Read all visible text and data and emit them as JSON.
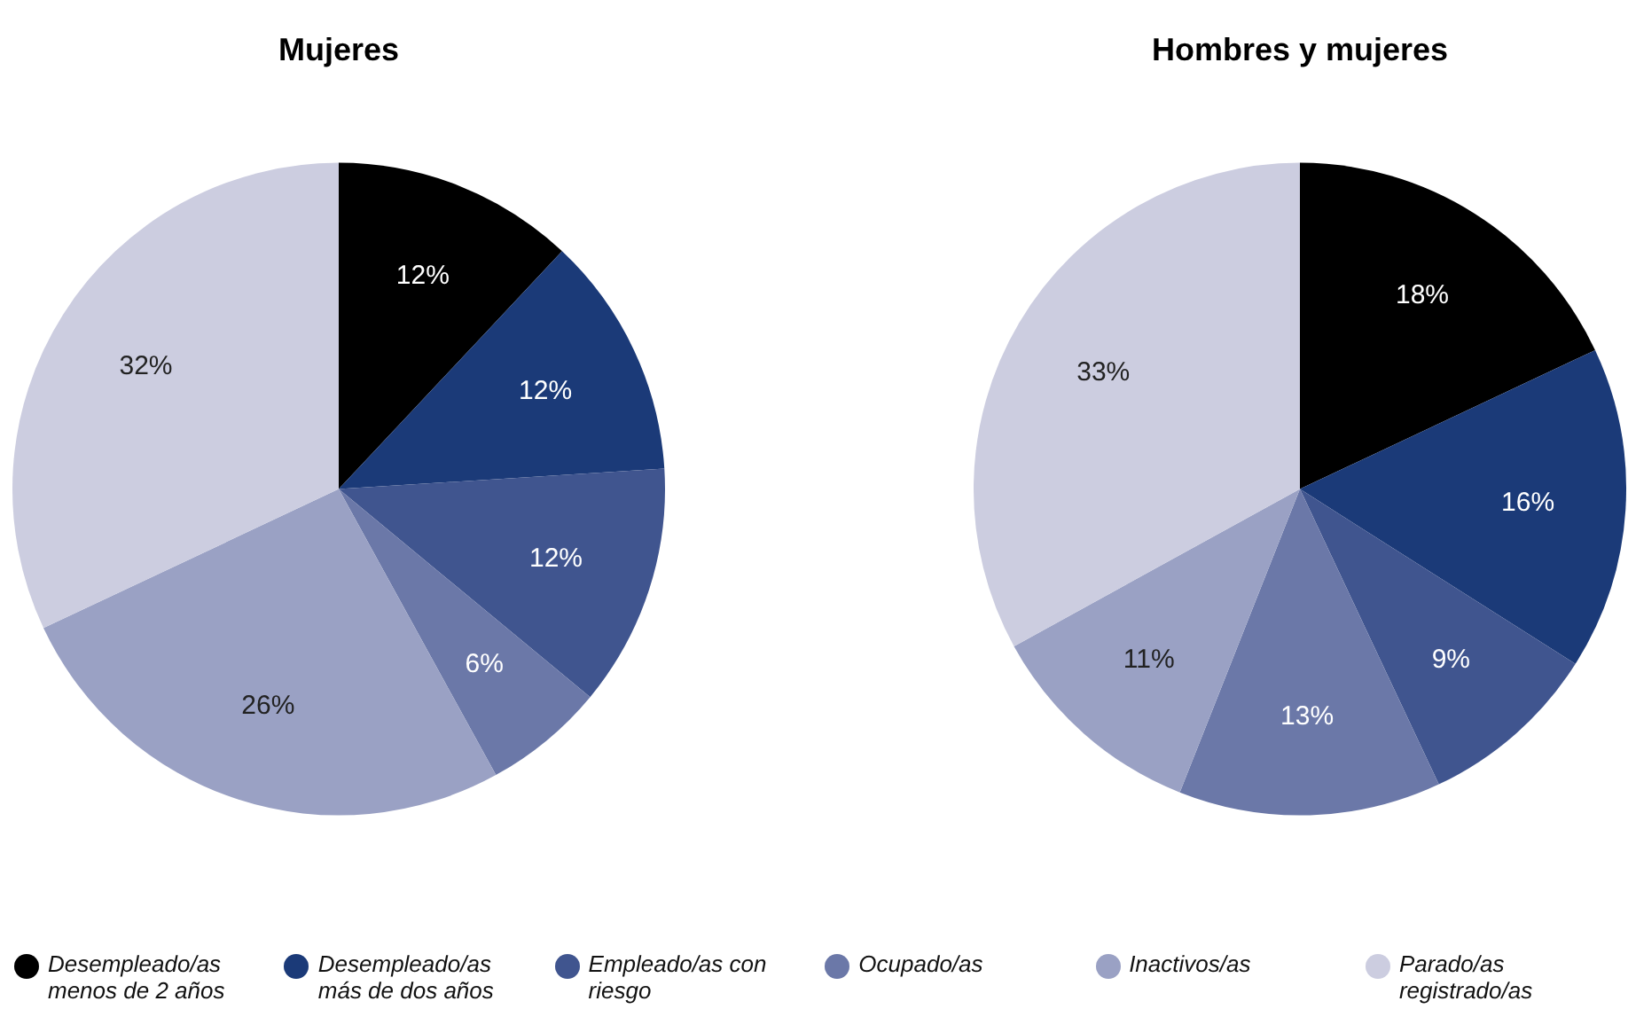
{
  "chart_data": [
    {
      "type": "pie",
      "title": "Mujeres",
      "categories": [
        "Desempleado/as menos de 2 años",
        "Desempleado/as más de dos años",
        "Empleado/as con riesgo",
        "Ocupado/as",
        "Inactivos/as",
        "Parado/as registrado/as"
      ],
      "values": [
        12,
        12,
        12,
        6,
        26,
        32
      ],
      "colors": [
        "#000000",
        "#1b3a78",
        "#40558f",
        "#6b78a8",
        "#9aa1c4",
        "#cccde0"
      ],
      "value_labels": [
        "12%",
        "12%",
        "12%",
        "6%",
        "26%",
        "32%"
      ],
      "legend": "bottom"
    },
    {
      "type": "pie",
      "title": "Hombres y mujeres",
      "categories": [
        null,
        null,
        null,
        null,
        null,
        null
      ],
      "values": [
        18,
        16,
        9,
        13,
        11,
        33
      ],
      "colors": [
        "#000000",
        "#1b3a78",
        "#40558f",
        "#6b78a8",
        "#9aa1c4",
        "#cccde0"
      ],
      "value_labels": [
        "18%",
        "16%",
        "9%",
        "13%",
        "11%",
        "33%"
      ]
    }
  ]
}
